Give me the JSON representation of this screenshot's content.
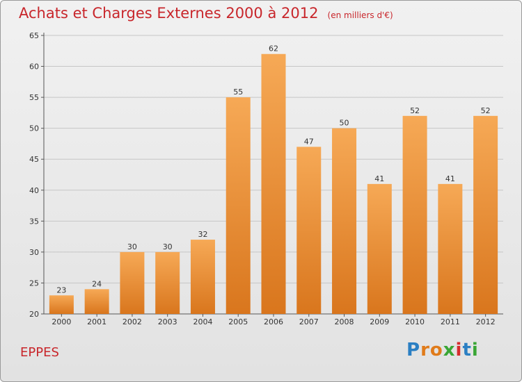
{
  "header": {
    "title": "Achats et Charges Externes 2000 à 2012",
    "unit": "(en milliers d'€)"
  },
  "footer": {
    "commune": "EPPES",
    "logo_text": "Proxiti"
  },
  "colors": {
    "title": "#c8262b",
    "bar_top": "#f6a956",
    "bar_bottom": "#d9761d",
    "grid": "#c6c6c6"
  },
  "chart_data": {
    "type": "bar",
    "title": "Achats et Charges Externes 2000 à 2012",
    "ylabel": "(en milliers d'€)",
    "xlabel": "",
    "categories": [
      "2000",
      "2001",
      "2002",
      "2003",
      "2004",
      "2005",
      "2006",
      "2007",
      "2008",
      "2009",
      "2010",
      "2011",
      "2012"
    ],
    "values": [
      23,
      24,
      30,
      30,
      32,
      55,
      62,
      47,
      50,
      41,
      52,
      41,
      52
    ],
    "ylim": [
      20,
      65
    ],
    "yticks": [
      20,
      25,
      30,
      35,
      40,
      45,
      50,
      55,
      60,
      65
    ],
    "grid": true,
    "data_labels": true
  }
}
